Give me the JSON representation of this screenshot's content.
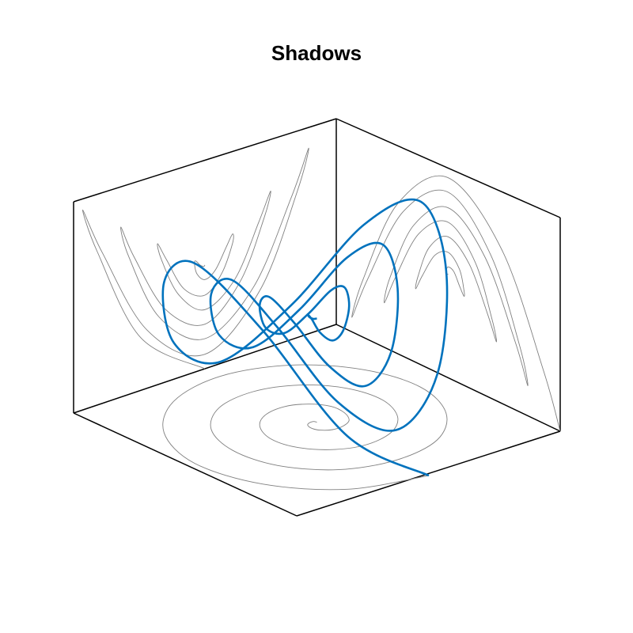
{
  "chart_data": {
    "type": "line3d",
    "title": "Shadows",
    "xlim": [
      -1,
      1
    ],
    "ylim": [
      -1,
      1
    ],
    "zlim": [
      -1,
      1
    ],
    "shadows": true,
    "shadow_color": "#808080",
    "series": [
      {
        "color": "#0072bd",
        "x": [
          0,
          0.02,
          0.02,
          0,
          -0.05,
          -0.1,
          -0.14,
          -0.14,
          -0.1,
          0,
          0.12,
          0.23,
          0.29,
          0.27,
          0.17,
          0,
          -0.19,
          -0.35,
          -0.43,
          -0.39,
          -0.24,
          0,
          0.26,
          0.47,
          0.57,
          0.52,
          0.31,
          0,
          -0.33,
          -0.6,
          -0.71,
          -0.64,
          -0.38,
          0,
          0.4,
          0.72,
          0.86,
          0.76,
          0.45,
          0,
          -0.48,
          -0.85,
          -1
        ],
        "y": [
          0,
          0.01,
          0.04,
          0.07,
          0.08,
          0.06,
          0,
          -0.08,
          -0.16,
          -0.21,
          -0.21,
          -0.13,
          0,
          0.16,
          0.29,
          0.36,
          0.33,
          0.2,
          0,
          -0.23,
          -0.41,
          -0.5,
          -0.45,
          -0.27,
          0,
          0.3,
          0.54,
          0.64,
          0.58,
          0.35,
          0,
          -0.37,
          -0.66,
          -0.79,
          -0.7,
          -0.42,
          0,
          0.44,
          0.78,
          0.93,
          0.82,
          0.49,
          0
        ],
        "z": [
          0,
          -0.01,
          0.02,
          0.07,
          0.05,
          -0.06,
          -0.14,
          -0.08,
          0.1,
          0.21,
          0.12,
          -0.13,
          -0.29,
          -0.16,
          0.17,
          0.36,
          0.19,
          -0.2,
          -0.43,
          -0.23,
          0.24,
          0.5,
          0.26,
          -0.27,
          -0.57,
          -0.3,
          0.31,
          0.64,
          0.33,
          -0.35,
          -0.71,
          -0.37,
          0.38,
          0.79,
          0.4,
          -0.42,
          -0.86,
          -0.44,
          0.45,
          0.93,
          0.48,
          -0.49,
          -1
        ]
      }
    ]
  }
}
